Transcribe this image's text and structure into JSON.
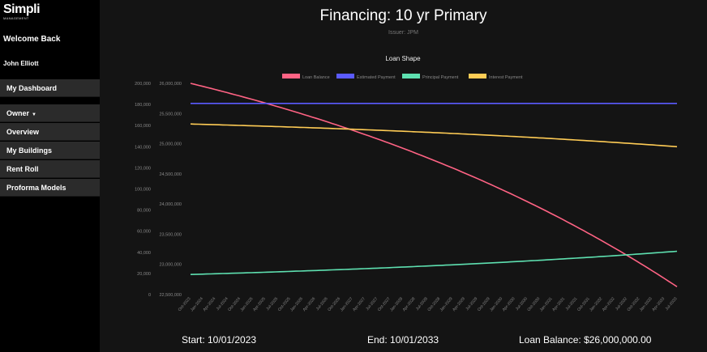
{
  "sidebar": {
    "logo_main": "Simpli",
    "logo_sub": "MANAGEMENT",
    "welcome": "Welcome Back",
    "user_name": "John Elliott",
    "dashboard_label": "My Dashboard",
    "owner_label": "Owner",
    "items": [
      {
        "label": "Overview"
      },
      {
        "label": "My Buildings"
      },
      {
        "label": "Rent Roll"
      },
      {
        "label": "Proforma Models"
      }
    ]
  },
  "header": {
    "title": "Financing: 10 yr Primary",
    "issuer": "Issuer: JPM"
  },
  "footer": {
    "start": "Start: 10/01/2023",
    "end": "End: 10/01/2033",
    "balance": "Loan Balance: $26,000,000.00"
  },
  "chart_data": {
    "type": "line",
    "title": "Loan Shape",
    "legend_position": "top",
    "grid": false,
    "x": [
      "Oct-2023",
      "Jan-2024",
      "Apr-2024",
      "Jul-2024",
      "Oct-2024",
      "Jan-2025",
      "Apr-2025",
      "Jul-2025",
      "Oct-2025",
      "Jan-2026",
      "Apr-2026",
      "Jul-2026",
      "Oct-2026",
      "Jan-2027",
      "Apr-2027",
      "Jul-2027",
      "Oct-2027",
      "Jan-2028",
      "Apr-2028",
      "Jul-2028",
      "Oct-2028",
      "Jan-2029",
      "Apr-2029",
      "Jul-2029",
      "Oct-2029",
      "Jan-2030",
      "Apr-2030",
      "Jul-2030",
      "Oct-2030",
      "Jan-2031",
      "Apr-2031",
      "Jul-2031",
      "Oct-2031",
      "Jan-2032",
      "Apr-2032",
      "Jul-2032",
      "Oct-2032",
      "Jan-2033",
      "Apr-2033",
      "Jul-2033"
    ],
    "y_left": {
      "ticks": [
        0,
        20000,
        40000,
        60000,
        80000,
        100000,
        120000,
        140000,
        160000,
        180000,
        200000
      ],
      "range": [
        0,
        200000
      ]
    },
    "y_right": {
      "ticks": [
        22500000,
        23000000,
        23500000,
        24000000,
        24500000,
        25000000,
        25500000,
        26000000
      ],
      "range": [
        22500000,
        26000000
      ]
    },
    "series": [
      {
        "name": "Loan Balance",
        "color": "#ff6384",
        "axis": "right",
        "start": 26000000,
        "end": 22630000
      },
      {
        "name": "Estimated Payment",
        "color": "#5b5bff",
        "axis": "left",
        "start": 181000,
        "end": 181000
      },
      {
        "name": "Principal Payment",
        "color": "#5ee0b0",
        "axis": "left",
        "start": 19000,
        "end": 41000
      },
      {
        "name": "Interest Payment",
        "color": "#ffcc55",
        "axis": "left",
        "start": 161500,
        "end": 140000
      }
    ]
  }
}
